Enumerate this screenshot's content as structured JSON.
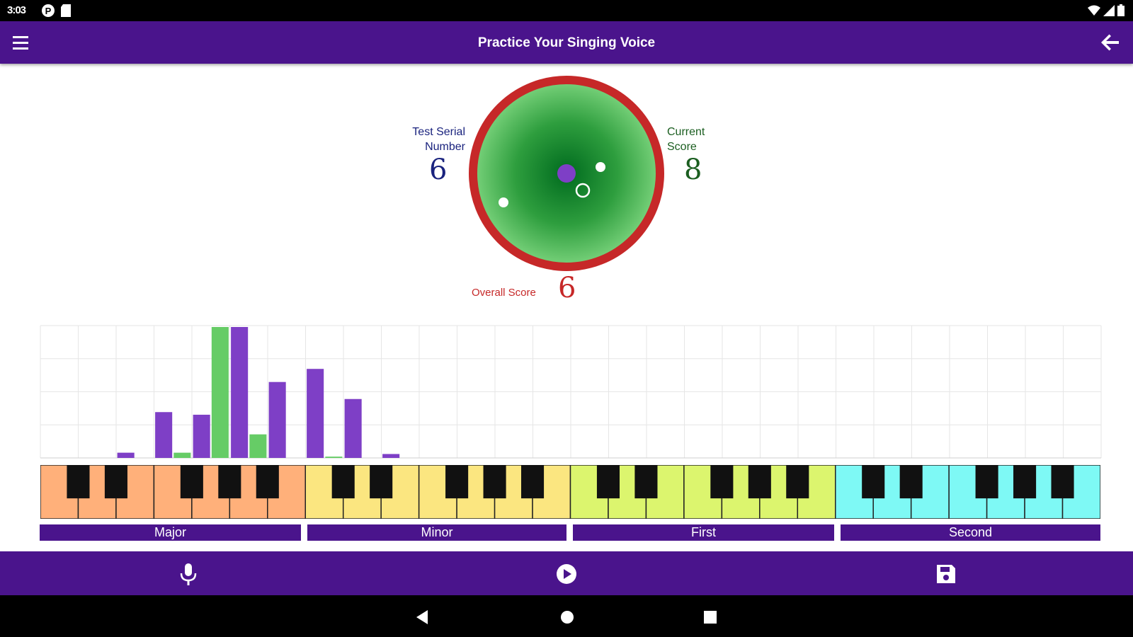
{
  "status_bar": {
    "time": "3:03"
  },
  "app_bar": {
    "title": "Practice Your Singing Voice"
  },
  "dial": {
    "test_serial": {
      "label_line1": "Test Serial",
      "label_line2": "Number",
      "value": "6",
      "color": "#1a237e"
    },
    "current_score": {
      "label_line1": "Current",
      "label_line2": "Score",
      "value": "8",
      "color": "#1b5e20"
    },
    "overall_score": {
      "label": "Overall Score",
      "value": "6",
      "color": "#c62828"
    },
    "ring_color": "#c62828",
    "marker_color": "#7e3fc6"
  },
  "chart_data": {
    "type": "bar",
    "series": [
      {
        "color": "#7e3fc6",
        "values": [
          0,
          0,
          0.04,
          0.35,
          0.33,
          1.0,
          0.58,
          0.68,
          0.45,
          0.03,
          0,
          0,
          0,
          0,
          0,
          0,
          0,
          0,
          0,
          0,
          0,
          0,
          0,
          0,
          0,
          0,
          0,
          0
        ]
      },
      {
        "color": "#66cc66",
        "values": [
          0,
          0,
          0,
          0.04,
          1.0,
          0.18,
          0,
          0.01,
          0,
          0,
          0,
          0,
          0,
          0,
          0,
          0,
          0,
          0,
          0,
          0,
          0,
          0,
          0,
          0,
          0,
          0,
          0,
          0
        ]
      }
    ],
    "grid": true
  },
  "piano": {
    "groups": [
      {
        "label": "Major",
        "color": "#ffb07a"
      },
      {
        "label": "Minor",
        "color": "#fbe680"
      },
      {
        "label": "First",
        "color": "#dcf56e"
      },
      {
        "label": "Second",
        "color": "#7ef9f5"
      }
    ]
  },
  "bottom_bar": {
    "mic_icon": "microphone-icon",
    "play_icon": "play-circle-icon",
    "save_icon": "floppy-disk-icon"
  }
}
